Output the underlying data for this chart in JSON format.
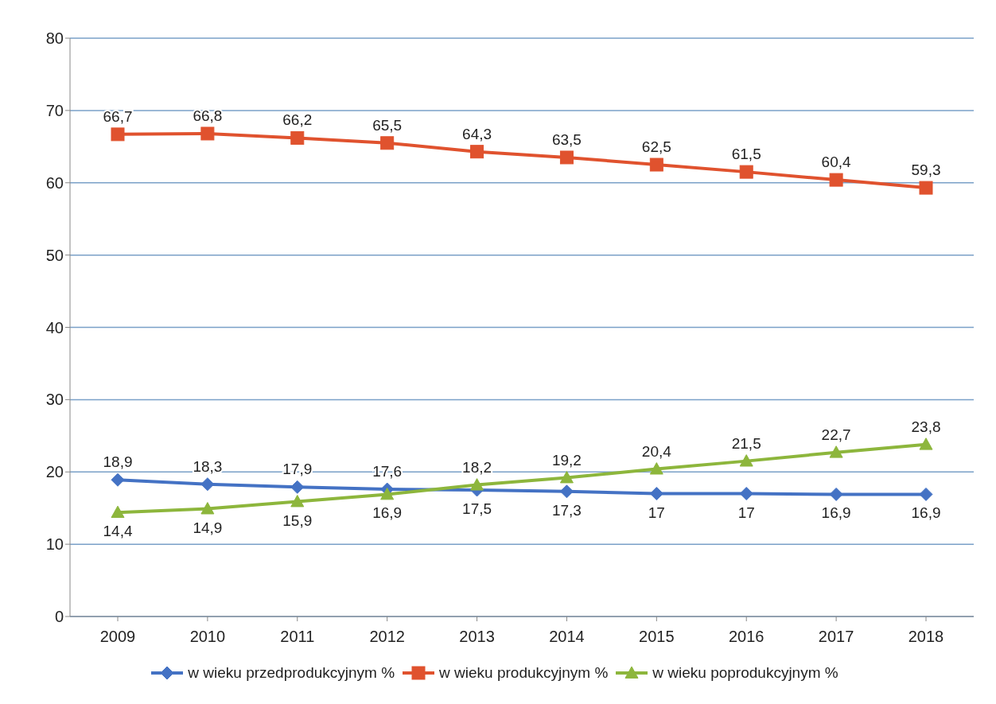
{
  "chart_data": {
    "type": "line",
    "categories": [
      "2009",
      "2010",
      "2011",
      "2012",
      "2013",
      "2014",
      "2015",
      "2016",
      "2017",
      "2018"
    ],
    "series": [
      {
        "name": "w wieku przedprodukcyjnym %",
        "color": "#4472c4",
        "marker": "diamond",
        "values": [
          18.9,
          18.3,
          17.9,
          17.6,
          17.5,
          17.3,
          17,
          17,
          16.9,
          16.9
        ],
        "value_labels": [
          "18,9",
          "18,3",
          "17,9",
          "17,6",
          "17,5",
          "17,3",
          "17",
          "17",
          "16,9",
          "16,9"
        ]
      },
      {
        "name": "w wieku produkcyjnym %",
        "color": "#e0522e",
        "marker": "square",
        "values": [
          66.7,
          66.8,
          66.2,
          65.5,
          64.3,
          63.5,
          62.5,
          61.5,
          60.4,
          59.3
        ],
        "value_labels": [
          "66,7",
          "66,8",
          "66,2",
          "65,5",
          "64,3",
          "63,5",
          "62,5",
          "61,5",
          "60,4",
          "59,3"
        ]
      },
      {
        "name": "w wieku poprodukcyjnym %",
        "color": "#8db63c",
        "marker": "triangle",
        "values": [
          14.4,
          14.9,
          15.9,
          16.9,
          18.2,
          19.2,
          20.4,
          21.5,
          22.7,
          23.8
        ],
        "value_labels": [
          "14,4",
          "14,9",
          "15,9",
          "16,9",
          "18,2",
          "19,2",
          "20,4",
          "21,5",
          "22,7",
          "23,8"
        ]
      }
    ],
    "ylim": [
      0,
      80
    ],
    "yticks": [
      0,
      10,
      20,
      30,
      40,
      50,
      60,
      70,
      80
    ],
    "grid": "y",
    "legend": "bottom"
  }
}
